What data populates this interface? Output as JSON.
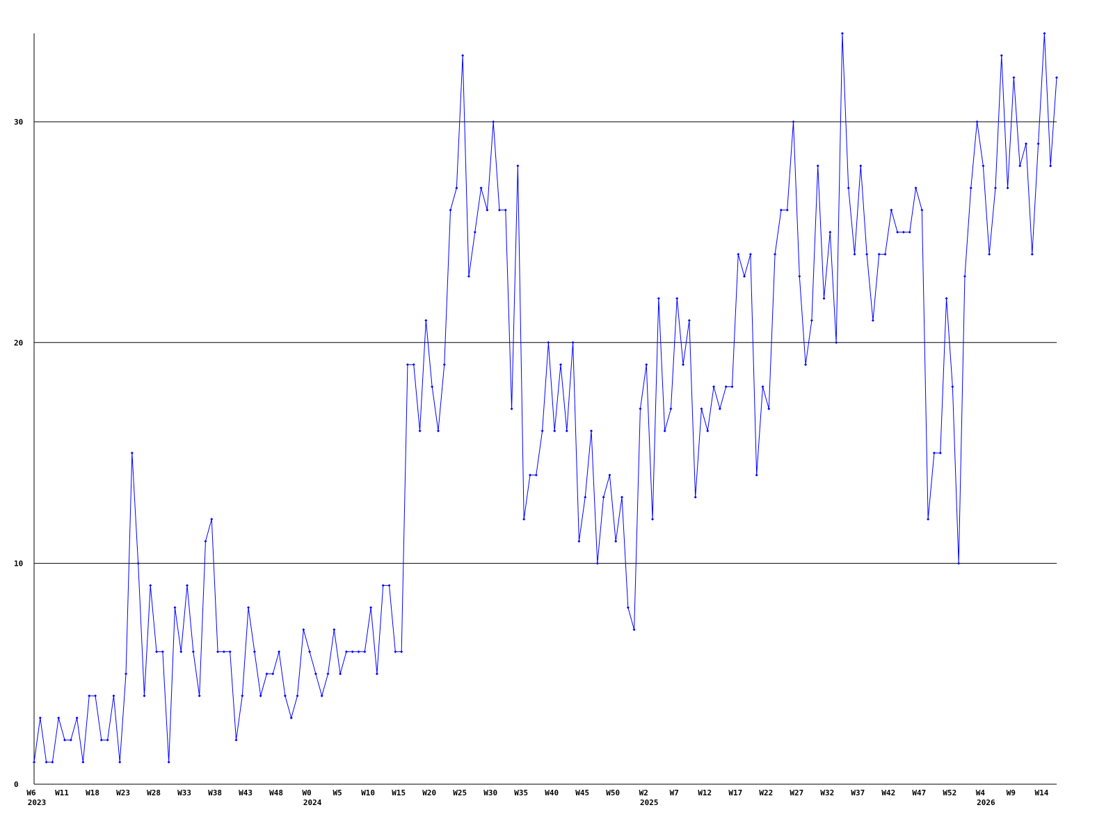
{
  "chart_data": {
    "type": "line",
    "color": "#0000ff",
    "grid": true,
    "marker": true,
    "categories": [
      "W6",
      null,
      null,
      null,
      null,
      "W11",
      null,
      null,
      null,
      null,
      "W18",
      null,
      null,
      null,
      null,
      "W23",
      null,
      null,
      null,
      null,
      "W28",
      null,
      null,
      null,
      null,
      "W33",
      null,
      null,
      null,
      null,
      "W38",
      null,
      null,
      null,
      null,
      "W43",
      null,
      null,
      null,
      null,
      "W48",
      null,
      null,
      null,
      null,
      "W0",
      null,
      null,
      null,
      null,
      "W5",
      null,
      null,
      null,
      null,
      "W10",
      null,
      null,
      null,
      null,
      "W15",
      null,
      null,
      null,
      null,
      "W20",
      null,
      null,
      null,
      null,
      "W25",
      null,
      null,
      null,
      null,
      "W30",
      null,
      null,
      null,
      null,
      "W35",
      null,
      null,
      null,
      null,
      "W40",
      null,
      null,
      null,
      null,
      "W45",
      null,
      null,
      null,
      null,
      "W50",
      null,
      null,
      null,
      null,
      "W2",
      null,
      null,
      null,
      null,
      "W7",
      null,
      null,
      null,
      null,
      "W12",
      null,
      null,
      null,
      null,
      "W17",
      null,
      null,
      null,
      null,
      "W22",
      null,
      null,
      null,
      null,
      "W27",
      null,
      null,
      null,
      null,
      "W32",
      null,
      null,
      null,
      null,
      "W37",
      null,
      null,
      null,
      null,
      "W42",
      null,
      null,
      null,
      null,
      "W47",
      null,
      null,
      null,
      null,
      "W52",
      null,
      null,
      null,
      null,
      "W4",
      null,
      null,
      null,
      null,
      "W9",
      null,
      null,
      null,
      null,
      "W14",
      null,
      null
    ],
    "category_years": [
      "2023",
      null,
      null,
      null,
      null,
      null,
      null,
      null,
      null,
      null,
      null,
      null,
      null,
      null,
      null,
      null,
      null,
      null,
      null,
      null,
      null,
      null,
      null,
      null,
      null,
      null,
      null,
      null,
      null,
      null,
      null,
      null,
      null,
      null,
      null,
      null,
      null,
      null,
      null,
      null,
      null,
      null,
      null,
      null,
      null,
      "2024",
      null,
      null,
      null,
      null,
      null,
      null,
      null,
      null,
      null,
      null,
      null,
      null,
      null,
      null,
      null,
      null,
      null,
      null,
      null,
      null,
      null,
      null,
      null,
      null,
      null,
      null,
      null,
      null,
      null,
      null,
      null,
      null,
      null,
      null,
      null,
      null,
      null,
      null,
      null,
      null,
      null,
      null,
      null,
      null,
      null,
      null,
      null,
      null,
      null,
      null,
      null,
      null,
      null,
      null,
      "2025",
      null,
      null,
      null,
      null,
      null,
      null,
      null,
      null,
      null,
      null,
      null,
      null,
      null,
      null,
      null,
      null,
      null,
      null,
      null,
      null,
      null,
      null,
      null,
      null,
      null,
      null,
      null,
      null,
      null,
      null,
      null,
      null,
      null,
      null,
      null,
      null,
      null,
      null,
      null,
      null,
      null,
      null,
      null,
      null,
      null,
      null,
      null,
      null,
      null,
      null,
      null,
      null,
      null,
      null,
      "2026",
      null,
      null,
      null,
      null,
      null,
      null,
      null,
      null,
      null,
      null,
      null,
      null
    ],
    "values": [
      1,
      3,
      1,
      1,
      3,
      2,
      2,
      3,
      1,
      4,
      4,
      2,
      2,
      4,
      1,
      5,
      15,
      10,
      4,
      9,
      6,
      6,
      1,
      8,
      6,
      9,
      6,
      4,
      11,
      12,
      6,
      6,
      6,
      2,
      4,
      8,
      6,
      4,
      5,
      5,
      6,
      4,
      3,
      4,
      7,
      6,
      5,
      4,
      5,
      7,
      5,
      6,
      6,
      6,
      6,
      8,
      5,
      9,
      9,
      6,
      6,
      19,
      19,
      16,
      21,
      18,
      16,
      19,
      26,
      27,
      33,
      23,
      25,
      27,
      26,
      30,
      26,
      26,
      17,
      28,
      12,
      14,
      14,
      16,
      20,
      16,
      19,
      16,
      20,
      11,
      13,
      16,
      10,
      13,
      14,
      11,
      13,
      8,
      7,
      17,
      19,
      12,
      22,
      16,
      17,
      22,
      19,
      21,
      13,
      17,
      16,
      18,
      17,
      18,
      18,
      24,
      23,
      24,
      14,
      18,
      17,
      24,
      26,
      26,
      30,
      23,
      19,
      21,
      28,
      22,
      25,
      20,
      34,
      27,
      24,
      28,
      24,
      21,
      24,
      24,
      26,
      25,
      25,
      25,
      27,
      26,
      12,
      15,
      15,
      22,
      18,
      10,
      23,
      27,
      30,
      28,
      24,
      27,
      33,
      27,
      32,
      28,
      29,
      24,
      29,
      34,
      28,
      32
    ],
    "ylim": [
      0,
      34
    ],
    "yticks": [
      0,
      10,
      20,
      30
    ]
  }
}
